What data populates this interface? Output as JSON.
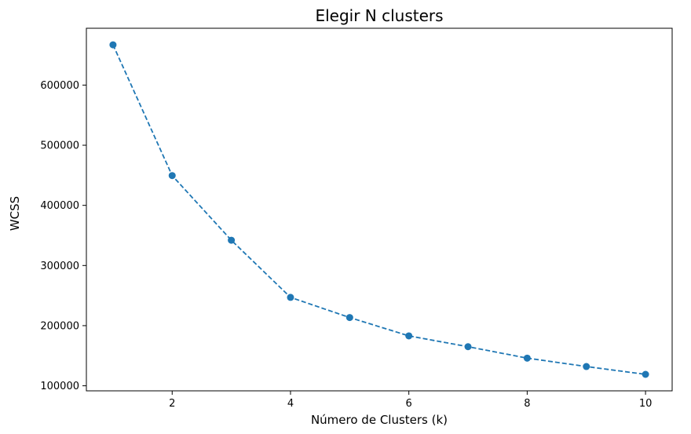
{
  "chart_data": {
    "type": "line",
    "title": "Elegir N clusters",
    "xlabel": "Número de Clusters (k)",
    "ylabel": "WCSS",
    "x": [
      1,
      2,
      3,
      4,
      5,
      6,
      7,
      8,
      9,
      10
    ],
    "series": [
      {
        "values": [
          667000,
          449500,
          342000,
          247000,
          213500,
          183000,
          165000,
          146000,
          132000,
          119000
        ],
        "color": "#1f77b4",
        "line_style": "dashed",
        "marker": "circle"
      }
    ],
    "xlim": [
      0.55,
      10.45
    ],
    "ylim": [
      91600,
      694500
    ],
    "xticks": [
      2,
      4,
      6,
      8,
      10
    ],
    "xtick_labels": [
      "2",
      "4",
      "6",
      "8",
      "10"
    ],
    "yticks": [
      100000,
      200000,
      300000,
      400000,
      500000,
      600000
    ],
    "ytick_labels": [
      "100000",
      "200000",
      "300000",
      "400000",
      "500000",
      "600000"
    ],
    "grid": false,
    "legend": "none"
  }
}
